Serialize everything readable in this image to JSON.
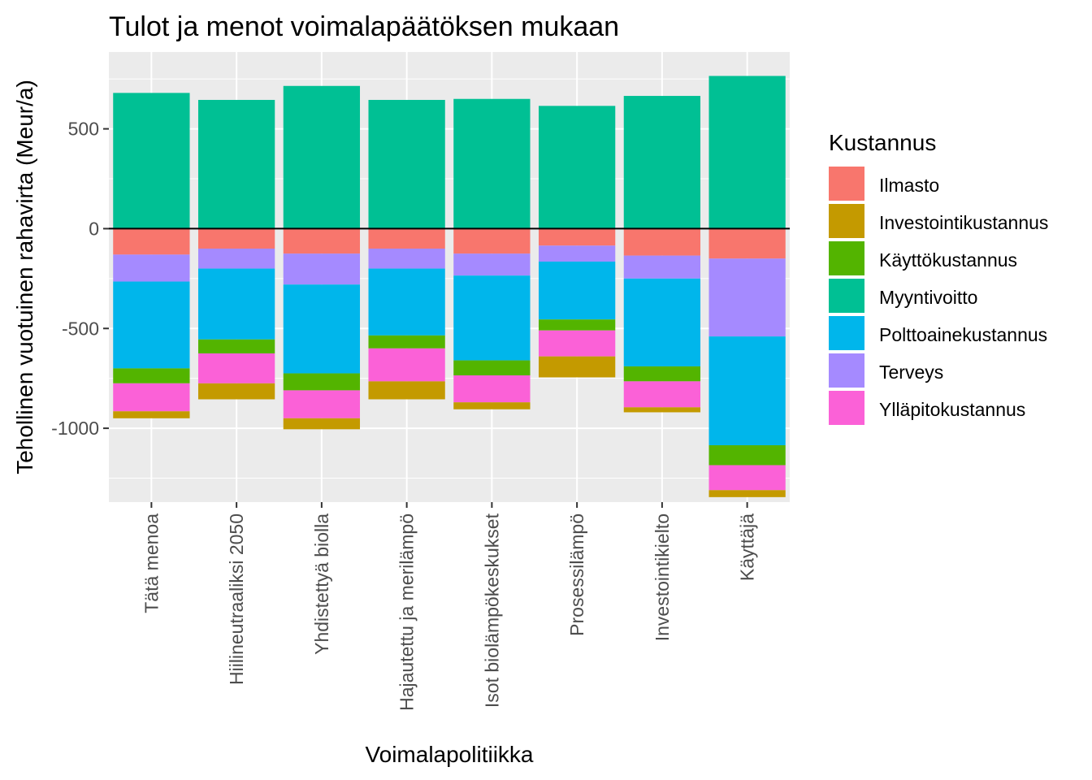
{
  "chart_data": {
    "type": "bar",
    "stacked": true,
    "title": "Tulot ja menot voimalapäätöksen mukaan",
    "xlabel": "Voimalapolitiikka",
    "ylabel": "Tehollinen vuotuinen rahavirta (Meur/a)",
    "ylim": [
      -1370,
      885
    ],
    "yticks": [
      500,
      0,
      -500,
      -1000
    ],
    "ytick_labels": [
      "500",
      "0",
      "-500",
      "-1000"
    ],
    "grid": true,
    "legend": {
      "title": "Kustannus",
      "position": "right"
    },
    "categories": [
      "Tätä menoa",
      "Hiilineutraaliksi 2050",
      "Yhdistettyä biolla",
      "Hajautettu ja merilämpö",
      "Isot biolämpökeskukset",
      "Prosessilämpö",
      "Investointikielto",
      "Käyttäjä"
    ],
    "series": [
      {
        "name": "Ilmasto",
        "color": "#F8766D",
        "values": [
          -130,
          -100,
          -125,
          -100,
          -125,
          -85,
          -135,
          -150
        ]
      },
      {
        "name": "Investointikustannus",
        "color": "#C49A00",
        "values": [
          -35,
          -80,
          -55,
          -90,
          -35,
          -105,
          -25,
          -35
        ]
      },
      {
        "name": "Käyttökustannus",
        "color": "#53B400",
        "values": [
          -75,
          -70,
          -85,
          -65,
          -75,
          -55,
          -75,
          -100
        ]
      },
      {
        "name": "Myyntivoitto",
        "color": "#00C094",
        "values": [
          680,
          645,
          715,
          645,
          650,
          615,
          665,
          765
        ]
      },
      {
        "name": "Polttoainekustannus",
        "color": "#00B6EB",
        "values": [
          -435,
          -355,
          -445,
          -335,
          -425,
          -290,
          -440,
          -545
        ]
      },
      {
        "name": "Terveys",
        "color": "#A58AFF",
        "values": [
          -135,
          -100,
          -155,
          -100,
          -110,
          -80,
          -115,
          -390
        ]
      },
      {
        "name": "Ylläpitokustannus",
        "color": "#FB61D7",
        "values": [
          -140,
          -150,
          -140,
          -165,
          -135,
          -130,
          -130,
          -125
        ]
      }
    ],
    "stack_order_negative": [
      "Ilmasto",
      "Terveys",
      "Polttoainekustannus",
      "Käyttökustannus",
      "Ylläpitokustannus",
      "Investointikustannus"
    ]
  }
}
